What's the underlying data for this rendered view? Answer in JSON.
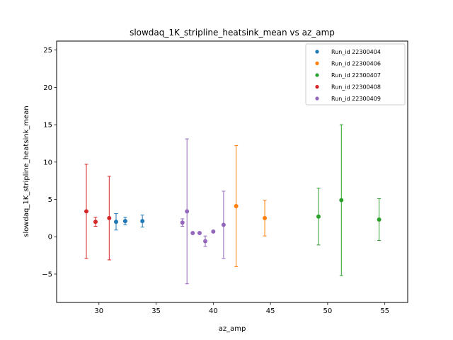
{
  "chart_data": {
    "type": "scatter",
    "title": "slowdaq_1K_stripline_heatsink_mean vs az_amp",
    "xlabel": "az_amp",
    "ylabel": "slowdaq_1K_stripline_heatsink_mean",
    "xlim": [
      26.3,
      57.0
    ],
    "ylim": [
      -8.8,
      26.2
    ],
    "xticks": [
      30,
      35,
      40,
      45,
      50,
      55
    ],
    "yticks": [
      -5,
      0,
      5,
      10,
      15,
      20,
      25
    ],
    "grid": false,
    "legend_position": "top-right",
    "error_bars": true,
    "series": [
      {
        "name": "Run_id 22300404",
        "color": "#1f77b4",
        "points": [
          {
            "x": 31.5,
            "y": 2.0,
            "err": 1.1
          },
          {
            "x": 32.3,
            "y": 2.1,
            "err": 0.5
          },
          {
            "x": 33.8,
            "y": 2.1,
            "err": 0.8
          }
        ]
      },
      {
        "name": "Run_id 22300406",
        "color": "#ff7f0e",
        "points": [
          {
            "x": 42.0,
            "y": 4.1,
            "err": 8.1
          },
          {
            "x": 44.5,
            "y": 2.5,
            "err": 2.4
          }
        ]
      },
      {
        "name": "Run_id 22300407",
        "color": "#2ca02c",
        "points": [
          {
            "x": 49.2,
            "y": 2.7,
            "err": 3.8
          },
          {
            "x": 51.2,
            "y": 4.9,
            "err": 10.1
          },
          {
            "x": 54.5,
            "y": 2.3,
            "err": 2.8
          }
        ]
      },
      {
        "name": "Run_id 22300408",
        "color": "#d62728",
        "points": [
          {
            "x": 28.9,
            "y": 3.4,
            "err": 6.3
          },
          {
            "x": 29.7,
            "y": 2.0,
            "err": 0.6
          },
          {
            "x": 30.9,
            "y": 2.5,
            "err": 5.6
          }
        ]
      },
      {
        "name": "Run_id 22300409",
        "color": "#9467bd",
        "points": [
          {
            "x": 37.3,
            "y": 1.9,
            "err": 0.5
          },
          {
            "x": 37.7,
            "y": 3.4,
            "err": 9.7
          },
          {
            "x": 38.2,
            "y": 0.5,
            "err": 0.0
          },
          {
            "x": 38.8,
            "y": 0.5,
            "err": 0.0
          },
          {
            "x": 39.3,
            "y": -0.6,
            "err": 0.7
          },
          {
            "x": 40.0,
            "y": 0.7,
            "err": 0.0
          },
          {
            "x": 40.9,
            "y": 1.6,
            "err": 4.5
          }
        ]
      }
    ]
  }
}
